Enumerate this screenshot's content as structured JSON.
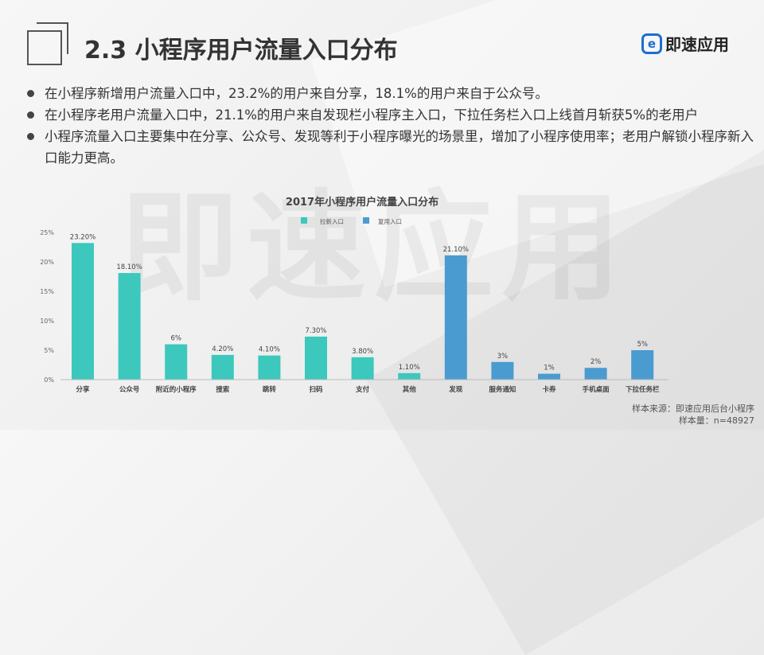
{
  "header": {
    "title": "2.3 小程序用户流量入口分布",
    "logo_text": "即速应用"
  },
  "watermark": "即速应用",
  "bullets": [
    "在小程序新增用户流量入口中，23.2%的用户来自分享，18.1%的用户来自于公众号。",
    "在小程序老用户流量入口中，21.1%的用户来自发现栏小程序主入口，下拉任务栏入口上线首月斩获5%的老用户",
    "小程序流量入口主要集中在分享、公众号、发现等利于小程序曝光的场景里，增加了小程序使用率；老用户解锁小程序新入口能力更高。"
  ],
  "footer": {
    "source": "样本来源：即速应用后台小程序",
    "sample": "样本量：n=48927"
  },
  "chart_data": {
    "type": "bar",
    "title": "2017年小程序用户流量入口分布",
    "categories": [
      "分享",
      "公众号",
      "附近的小程序",
      "搜索",
      "跳转",
      "扫码",
      "支付",
      "其他",
      "发现",
      "服务通知",
      "卡券",
      "手机桌面",
      "下拉任务栏"
    ],
    "series": [
      {
        "name": "拉新入口",
        "color": "#3cc8bd",
        "values": [
          23.2,
          18.1,
          6,
          4.2,
          4.1,
          7.3,
          3.8,
          1.1,
          null,
          null,
          null,
          null,
          null
        ]
      },
      {
        "name": "复用入口",
        "color": "#4a9bd0",
        "values": [
          null,
          null,
          null,
          null,
          null,
          null,
          null,
          null,
          21.1,
          3,
          1,
          2,
          5
        ]
      }
    ],
    "data_labels": [
      "23.20%",
      "18.10%",
      "6%",
      "4.20%",
      "4.10%",
      "7.30%",
      "3.80%",
      "1.10%",
      "21.10%",
      "3%",
      "1%",
      "2%",
      "5%"
    ],
    "y_ticks": [
      "0%",
      "5%",
      "10%",
      "15%",
      "20%",
      "25%"
    ],
    "ylim": [
      0,
      25
    ],
    "legend_position": "top-center",
    "grid": false
  }
}
